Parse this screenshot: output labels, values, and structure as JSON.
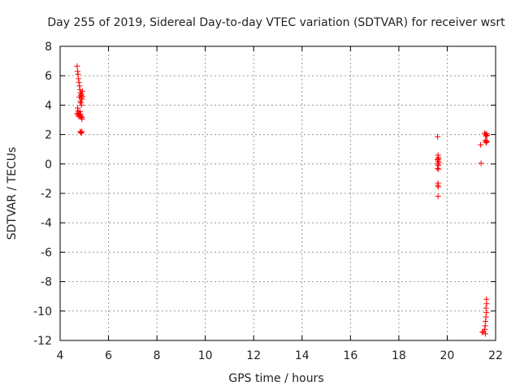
{
  "chart_data": {
    "type": "scatter",
    "title": "Day 255 of 2019, Sidereal Day-to-day VTEC variation (SDTVAR) for receiver wsrt",
    "xlabel": "GPS time / hours",
    "ylabel": "SDTVAR / TECUs",
    "xlim": [
      4,
      22
    ],
    "ylim": [
      -12,
      8
    ],
    "xticks": [
      4,
      6,
      8,
      10,
      12,
      14,
      16,
      18,
      20,
      22
    ],
    "yticks": [
      8,
      6,
      4,
      2,
      0,
      -2,
      -4,
      -6,
      -8,
      -10,
      -12
    ],
    "grid": true,
    "marker": "+",
    "color": "#ff0000",
    "series": [
      {
        "name": "SDTVAR",
        "points": [
          [
            4.7,
            6.65
          ],
          [
            4.72,
            6.3
          ],
          [
            4.74,
            6.1
          ],
          [
            4.76,
            5.8
          ],
          [
            4.78,
            5.55
          ],
          [
            4.8,
            5.3
          ],
          [
            4.82,
            5.05
          ],
          [
            4.84,
            4.85
          ],
          [
            4.86,
            4.65
          ],
          [
            4.88,
            4.5
          ],
          [
            4.9,
            4.4
          ],
          [
            4.8,
            4.55
          ],
          [
            4.83,
            4.25
          ],
          [
            4.86,
            4.15
          ],
          [
            4.88,
            4.0
          ],
          [
            4.72,
            3.8
          ],
          [
            4.74,
            3.6
          ],
          [
            4.76,
            3.45
          ],
          [
            4.78,
            3.35
          ],
          [
            4.81,
            3.3
          ],
          [
            4.84,
            3.25
          ],
          [
            4.87,
            3.2
          ],
          [
            4.9,
            3.15
          ],
          [
            4.7,
            3.4
          ],
          [
            4.75,
            3.25
          ],
          [
            4.82,
            3.55
          ],
          [
            4.85,
            3.38
          ],
          [
            4.9,
            3.05
          ],
          [
            4.83,
            2.2
          ],
          [
            4.85,
            2.15
          ],
          [
            4.88,
            2.1
          ],
          [
            4.9,
            2.2
          ],
          [
            4.92,
            4.95
          ],
          [
            4.88,
            4.75
          ],
          [
            4.91,
            4.6
          ],
          [
            19.6,
            1.85
          ],
          [
            19.62,
            0.6
          ],
          [
            19.63,
            0.45
          ],
          [
            19.64,
            0.35
          ],
          [
            19.6,
            0.3
          ],
          [
            19.62,
            0.2
          ],
          [
            19.65,
            0.1
          ],
          [
            19.61,
            0.0
          ],
          [
            19.63,
            -0.1
          ],
          [
            19.6,
            -0.3
          ],
          [
            19.64,
            -0.35
          ],
          [
            19.62,
            -1.3
          ],
          [
            19.61,
            -1.45
          ],
          [
            19.63,
            -1.55
          ],
          [
            19.62,
            -2.2
          ],
          [
            21.38,
            1.3
          ],
          [
            21.4,
            0.05
          ],
          [
            21.55,
            2.1
          ],
          [
            21.58,
            2.0
          ],
          [
            21.6,
            1.9
          ],
          [
            21.63,
            2.05
          ],
          [
            21.65,
            1.95
          ],
          [
            21.57,
            1.6
          ],
          [
            21.6,
            1.5
          ],
          [
            21.62,
            1.45
          ],
          [
            21.64,
            1.55
          ],
          [
            21.62,
            -9.2
          ],
          [
            21.63,
            -9.5
          ],
          [
            21.6,
            -9.8
          ],
          [
            21.62,
            -10.1
          ],
          [
            21.6,
            -10.4
          ],
          [
            21.58,
            -10.7
          ],
          [
            21.57,
            -11.0
          ],
          [
            21.55,
            -11.25
          ],
          [
            21.5,
            -11.4
          ],
          [
            21.45,
            -11.45
          ],
          [
            21.58,
            -11.55
          ]
        ]
      }
    ]
  }
}
